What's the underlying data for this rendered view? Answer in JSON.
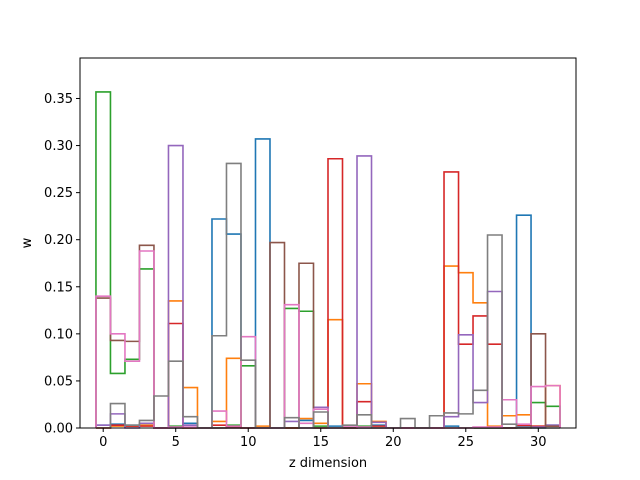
{
  "chart_data": {
    "type": "step",
    "title": "",
    "xlabel": "z dimension",
    "ylabel": "w",
    "xlim": [
      -1.6,
      32.6
    ],
    "ylim": [
      0,
      0.393
    ],
    "grid": false,
    "legend": "none",
    "x_ticks": [
      0,
      5,
      10,
      15,
      20,
      25,
      30
    ],
    "x_tick_labels": [
      "0",
      "5",
      "10",
      "15",
      "20",
      "25",
      "30"
    ],
    "y_ticks": [
      0,
      0.05,
      0.1,
      0.15,
      0.2,
      0.25,
      0.3,
      0.35
    ],
    "y_tick_labels": [
      "0.00",
      "0.05",
      "0.10",
      "0.15",
      "0.20",
      "0.25",
      "0.30",
      "0.35"
    ],
    "x": [
      0,
      1,
      2,
      3,
      4,
      5,
      6,
      7,
      8,
      9,
      10,
      11,
      12,
      13,
      14,
      15,
      16,
      17,
      18,
      19,
      20,
      21,
      22,
      23,
      24,
      25,
      26,
      27,
      28,
      29,
      30,
      31
    ],
    "series": [
      {
        "color": "#1f77b4",
        "values": [
          0.003,
          0.004,
          0.003,
          0.003,
          0,
          0,
          0.005,
          0,
          0.222,
          0.206,
          0,
          0.307,
          0,
          0,
          0.008,
          0,
          0.002,
          0,
          0,
          0.003,
          0,
          0,
          0,
          0,
          0.002,
          0,
          0,
          0,
          0,
          0.226,
          0,
          0.003
        ]
      },
      {
        "color": "#ff7f0e",
        "values": [
          0,
          0.002,
          0.002,
          0.003,
          0,
          0.135,
          0.043,
          0,
          0.007,
          0.074,
          0,
          0.002,
          0,
          0,
          0.01,
          0.005,
          0.115,
          0,
          0.047,
          0.007,
          0,
          0,
          0,
          0,
          0.172,
          0.165,
          0.133,
          0.002,
          0.013,
          0.014,
          0.002,
          0.045
        ]
      },
      {
        "color": "#2ca02c",
        "values": [
          0.357,
          0.058,
          0.073,
          0.169,
          0,
          0.002,
          0,
          0,
          0,
          0.003,
          0.066,
          0,
          0,
          0.127,
          0.124,
          0.002,
          0,
          0,
          0.002,
          0,
          0,
          0,
          0,
          0,
          0,
          0,
          0,
          0,
          0,
          0.002,
          0.027,
          0.023
        ]
      },
      {
        "color": "#d62728",
        "values": [
          0,
          0.003,
          0.002,
          0.002,
          0,
          0.111,
          0,
          0,
          0.003,
          0.001,
          0,
          0,
          0,
          0,
          0,
          0,
          0.286,
          0,
          0.028,
          0.002,
          0,
          0,
          0,
          0,
          0.272,
          0.089,
          0.119,
          0.089,
          0,
          0.003,
          0.002,
          0.002
        ]
      },
      {
        "color": "#9467bd",
        "values": [
          0.003,
          0.015,
          0,
          0.005,
          0,
          0.3,
          0.003,
          0,
          0,
          0,
          0,
          0,
          0,
          0.007,
          0,
          0.022,
          0,
          0,
          0.289,
          0.006,
          0,
          0,
          0,
          0,
          0.012,
          0.099,
          0.027,
          0.145,
          0,
          0.001,
          0.001,
          0.003
        ]
      },
      {
        "color": "#8c564b",
        "values": [
          0.138,
          0.093,
          0.092,
          0.194,
          0,
          0,
          0,
          0,
          0,
          0,
          0,
          0,
          0.197,
          0,
          0.175,
          0,
          0,
          0,
          0,
          0,
          0,
          0,
          0,
          0,
          0,
          0,
          0,
          0,
          0,
          0,
          0.1,
          0.002
        ]
      },
      {
        "color": "#e377c2",
        "values": [
          0.14,
          0.1,
          0.071,
          0.188,
          0,
          0.001,
          0.001,
          0,
          0.018,
          0.002,
          0.097,
          0,
          0,
          0.131,
          0.005,
          0.02,
          0,
          0.002,
          0.001,
          0,
          0,
          0,
          0,
          0,
          0,
          0,
          0.001,
          0.001,
          0.03,
          0.004,
          0.044,
          0.045
        ]
      },
      {
        "color": "#7f7f7f",
        "values": [
          0,
          0.026,
          0.003,
          0.008,
          0.034,
          0.071,
          0.012,
          0,
          0.098,
          0.281,
          0.072,
          0,
          0,
          0.011,
          0,
          0.017,
          0,
          0.003,
          0.014,
          0,
          0,
          0.01,
          0,
          0.013,
          0.016,
          0.015,
          0.04,
          0.205,
          0.004,
          0,
          0,
          0
        ]
      }
    ]
  }
}
